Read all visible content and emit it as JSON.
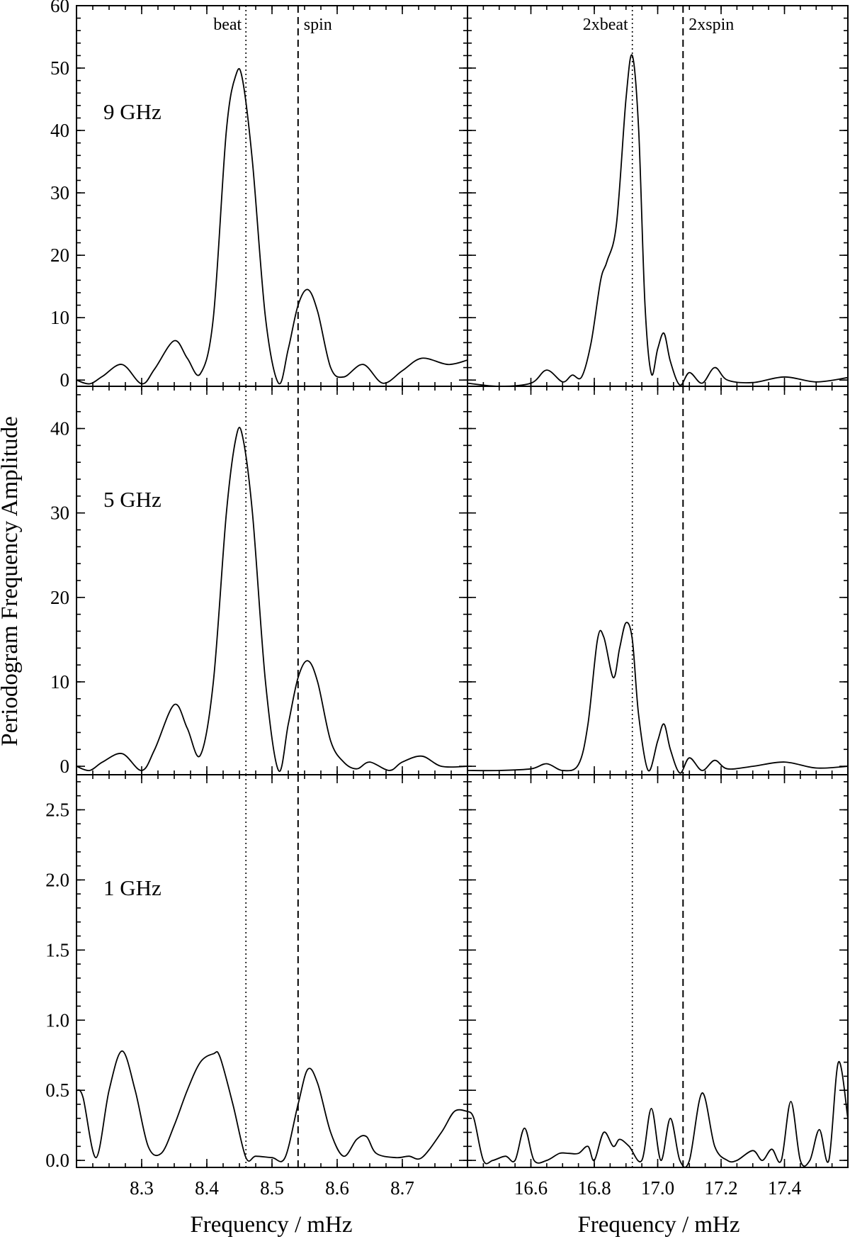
{
  "figure": {
    "ylabel": "Periodogram Frequency Amplitude",
    "xlabel_left": "Frequency / mHz",
    "xlabel_right": "Frequency / mHz"
  },
  "chart_data": {
    "type": "line",
    "columns": [
      {
        "xlim": [
          8.2,
          8.8
        ],
        "xticks": [
          8.3,
          8.4,
          8.5,
          8.6,
          8.7
        ],
        "markers": [
          {
            "label": "beat",
            "x": 8.46,
            "style": "dotted"
          },
          {
            "label": "spin",
            "x": 8.54,
            "style": "dashed"
          }
        ]
      },
      {
        "xlim": [
          16.4,
          17.6
        ],
        "xticks": [
          16.6,
          16.8,
          17.0,
          17.2,
          17.4
        ],
        "markers": [
          {
            "label": "2xbeat",
            "x": 16.92,
            "style": "dotted"
          },
          {
            "label": "2xspin",
            "x": 17.08,
            "style": "dashed"
          }
        ]
      }
    ],
    "rows": [
      {
        "label": "9 GHz",
        "ylim": [
          -1,
          60
        ],
        "yticks": [
          0,
          10,
          20,
          30,
          40,
          50,
          60
        ],
        "tick_format": "int",
        "series": [
          {
            "x": [
              8.2,
              8.22,
              8.24,
              8.27,
              8.3,
              8.32,
              8.35,
              8.37,
              8.39,
              8.41,
              8.43,
              8.445,
              8.455,
              8.47,
              8.49,
              8.51,
              8.525,
              8.54,
              8.555,
              8.57,
              8.59,
              8.61,
              8.64,
              8.67,
              8.7,
              8.73,
              8.77,
              8.8
            ],
            "y": [
              0,
              -0.6,
              0.6,
              2.5,
              -0.6,
              1.8,
              6.3,
              3.5,
              1,
              10,
              40,
              49,
              48,
              35,
              10,
              -0.5,
              5,
              12,
              14.5,
              11,
              2,
              0.5,
              2.5,
              -0.5,
              1.5,
              3.5,
              2.5,
              3.2
            ]
          },
          {
            "x": [
              16.4,
              16.5,
              16.6,
              16.65,
              16.7,
              16.73,
              16.76,
              16.79,
              16.82,
              16.84,
              16.87,
              16.9,
              16.92,
              16.94,
              16.96,
              16.98,
              17.0,
              17.02,
              17.04,
              17.07,
              17.1,
              17.14,
              17.18,
              17.22,
              17.3,
              17.4,
              17.5,
              17.6
            ],
            "y": [
              -0.5,
              -1,
              -0.5,
              1.6,
              -0.3,
              0.8,
              0.5,
              6,
              16,
              19,
              25,
              45,
              52,
              40,
              12,
              1,
              5,
              7.5,
              3,
              -0.8,
              1.2,
              -0.5,
              2,
              0,
              -0.4,
              0.5,
              -0.3,
              0.4
            ]
          }
        ]
      },
      {
        "label": "5 GHz",
        "ylim": [
          -1,
          45
        ],
        "yticks": [
          0,
          10,
          20,
          30,
          40
        ],
        "tick_format": "int",
        "series": [
          {
            "x": [
              8.2,
              8.22,
              8.24,
              8.27,
              8.3,
              8.32,
              8.35,
              8.37,
              8.39,
              8.41,
              8.43,
              8.445,
              8.455,
              8.47,
              8.49,
              8.51,
              8.525,
              8.54,
              8.555,
              8.57,
              8.59,
              8.61,
              8.63,
              8.65,
              8.68,
              8.7,
              8.73,
              8.76,
              8.8
            ],
            "y": [
              0,
              -0.5,
              0.5,
              1.5,
              -0.5,
              2,
              7.3,
              4.5,
              1.3,
              10,
              30,
              39,
              39,
              30,
              10,
              -0.5,
              5,
              10.5,
              12.5,
              10,
              3,
              0.5,
              -0.3,
              0.5,
              -0.5,
              0.5,
              1.2,
              0,
              0
            ]
          },
          {
            "x": [
              16.4,
              16.5,
              16.6,
              16.65,
              16.7,
              16.75,
              16.78,
              16.81,
              16.83,
              16.86,
              16.88,
              16.9,
              16.92,
              16.94,
              16.97,
              17.0,
              17.02,
              17.04,
              17.07,
              17.1,
              17.14,
              17.18,
              17.22,
              17.3,
              17.4,
              17.5,
              17.6
            ],
            "y": [
              -0.5,
              -0.5,
              -0.3,
              0.3,
              -0.5,
              0.2,
              5,
              15,
              15.3,
              10.5,
              14,
              17,
              15,
              6,
              -0.5,
              3,
              5,
              2,
              -0.8,
              1,
              -0.5,
              0.7,
              -0.3,
              0,
              0.5,
              -0.2,
              0
            ]
          }
        ]
      },
      {
        "label": "1 GHz",
        "ylim": [
          -0.05,
          2.75
        ],
        "yticks": [
          0.0,
          0.5,
          1.0,
          1.5,
          2.0,
          2.5
        ],
        "tick_format": "1dp",
        "series": [
          {
            "x": [
              8.2,
              8.21,
              8.23,
              8.25,
              8.27,
              8.29,
              8.31,
              8.33,
              8.35,
              8.37,
              8.39,
              8.41,
              8.42,
              8.44,
              8.46,
              8.475,
              8.5,
              8.52,
              8.54,
              8.555,
              8.57,
              8.59,
              8.61,
              8.63,
              8.645,
              8.66,
              8.69,
              8.71,
              8.73,
              8.76,
              8.78,
              8.8
            ],
            "y": [
              0.5,
              0.45,
              0.02,
              0.5,
              0.78,
              0.5,
              0.1,
              0.05,
              0.25,
              0.5,
              0.7,
              0.76,
              0.74,
              0.4,
              0.02,
              0.03,
              0.02,
              0.02,
              0.4,
              0.65,
              0.55,
              0.2,
              0.03,
              0.15,
              0.17,
              0.05,
              0.02,
              0.03,
              0.02,
              0.2,
              0.35,
              0.35
            ]
          },
          {
            "x": [
              16.4,
              16.42,
              16.45,
              16.48,
              16.52,
              16.55,
              16.58,
              16.61,
              16.65,
              16.69,
              16.72,
              16.75,
              16.78,
              16.8,
              16.83,
              16.86,
              16.88,
              16.91,
              16.95,
              16.98,
              17.01,
              17.04,
              17.07,
              17.1,
              17.14,
              17.18,
              17.22,
              17.25,
              17.3,
              17.33,
              17.36,
              17.39,
              17.42,
              17.45,
              17.48,
              17.51,
              17.54,
              17.57,
              17.6
            ],
            "y": [
              0.35,
              0.3,
              0.0,
              0.0,
              0.03,
              0.0,
              0.23,
              0.0,
              0.0,
              0.05,
              0.05,
              0.05,
              0.1,
              0.0,
              0.2,
              0.1,
              0.15,
              0.1,
              0.0,
              0.37,
              0.0,
              0.3,
              0.0,
              0.0,
              0.48,
              0.1,
              0.0,
              0.0,
              0.07,
              0.0,
              0.08,
              0.0,
              0.42,
              0.0,
              0.0,
              0.22,
              0.0,
              0.7,
              0.3
            ]
          }
        ]
      }
    ]
  }
}
